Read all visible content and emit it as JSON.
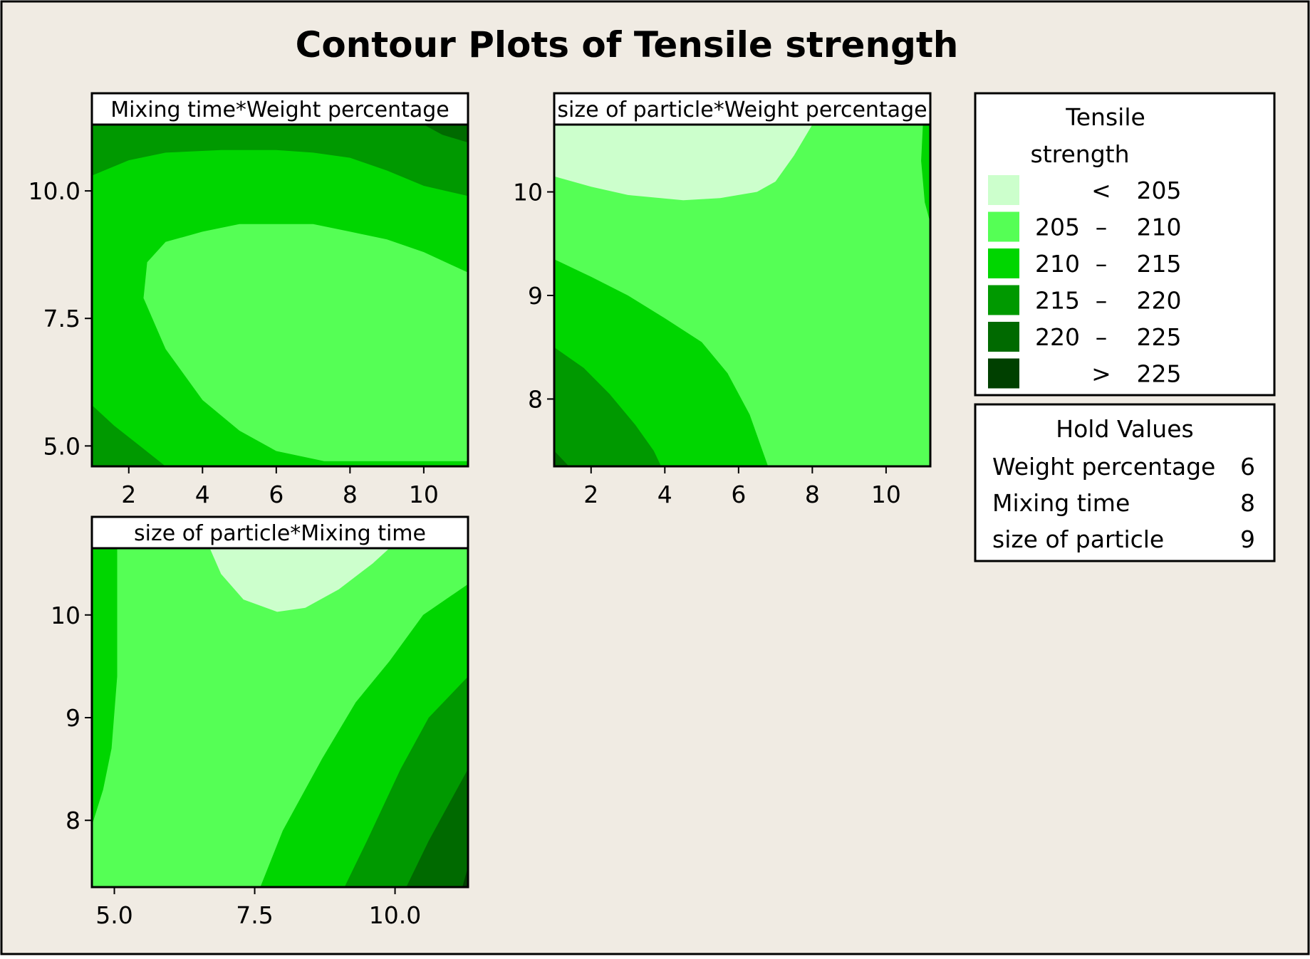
{
  "title": "Contour Plots of Tensile strength",
  "colors": {
    "background": "#f0ebe3",
    "frame": "#000000",
    "band_lt_205": "#ccffcc",
    "band_205_210": "#55ff55",
    "band_210_215": "#00d600",
    "band_215_220": "#009900",
    "band_220_225": "#006a00",
    "band_gt_225": "#004000"
  },
  "legend": {
    "title_line1": "Tensile",
    "title_line2": "strength",
    "entries": [
      {
        "low": "",
        "sep": "<",
        "high": "205",
        "color_key": "band_lt_205"
      },
      {
        "low": "205",
        "sep": "–",
        "high": "210",
        "color_key": "band_205_210"
      },
      {
        "low": "210",
        "sep": "–",
        "high": "215",
        "color_key": "band_210_215"
      },
      {
        "low": "215",
        "sep": "–",
        "high": "220",
        "color_key": "band_215_220"
      },
      {
        "low": "220",
        "sep": "–",
        "high": "225",
        "color_key": "band_220_225"
      },
      {
        "low": "",
        "sep": ">",
        "high": "225",
        "color_key": "band_gt_225"
      }
    ]
  },
  "hold_values": {
    "title": "Hold Values",
    "rows": [
      {
        "name": "Weight percentage",
        "value": "6"
      },
      {
        "name": "Mixing time",
        "value": "8"
      },
      {
        "name": "size of particle",
        "value": "9"
      }
    ]
  },
  "chart_data": [
    {
      "type": "heatmap",
      "subtitle": "Mixing time*Weight percentage",
      "xlim": [
        1,
        11.2
      ],
      "ylim": [
        4.6,
        11.3
      ],
      "x_ticks": [
        "2",
        "4",
        "6",
        "8",
        "10"
      ],
      "y_ticks": [
        "5.0",
        "7.5",
        "10.0"
      ],
      "z_levels": [
        205,
        210,
        215,
        220,
        225
      ],
      "regions": [
        {
          "band": "210 - 215",
          "color_key": "band_210_215",
          "polygon": [
            [
              1,
              4.6
            ],
            [
              11.2,
              4.6
            ],
            [
              11.2,
              11.3
            ],
            [
              1,
              11.3
            ]
          ]
        },
        {
          "band": "215 - 220",
          "color_key": "band_215_220",
          "polygon": [
            [
              1,
              10.3
            ],
            [
              2,
              10.6
            ],
            [
              3,
              10.75
            ],
            [
              4.5,
              10.8
            ],
            [
              6,
              10.8
            ],
            [
              7,
              10.75
            ],
            [
              8,
              10.65
            ],
            [
              9,
              10.4
            ],
            [
              10,
              10.1
            ],
            [
              11.2,
              9.9
            ],
            [
              11.2,
              11.3
            ],
            [
              1,
              11.3
            ]
          ]
        },
        {
          "band": "215 - 220",
          "color_key": "band_215_220",
          "polygon": [
            [
              1,
              5.8
            ],
            [
              1.6,
              5.4
            ],
            [
              2.3,
              5
            ],
            [
              3,
              4.6
            ],
            [
              1,
              4.6
            ]
          ]
        },
        {
          "band": "220 - 225",
          "color_key": "band_220_225",
          "polygon": [
            [
              10,
              11.3
            ],
            [
              10.5,
              11.1
            ],
            [
              11.2,
              10.95
            ],
            [
              11.2,
              11.3
            ]
          ]
        },
        {
          "band": "205 - 210",
          "color_key": "band_205_210",
          "polygon": [
            [
              7.3,
              4.7
            ],
            [
              6,
              4.9
            ],
            [
              5,
              5.3
            ],
            [
              4,
              5.9
            ],
            [
              3,
              6.9
            ],
            [
              2.4,
              7.9
            ],
            [
              2.5,
              8.6
            ],
            [
              3,
              9
            ],
            [
              4,
              9.2
            ],
            [
              5,
              9.35
            ],
            [
              7,
              9.35
            ],
            [
              8,
              9.2
            ],
            [
              9,
              9.05
            ],
            [
              10,
              8.8
            ],
            [
              11.2,
              8.4
            ],
            [
              11.2,
              4.7
            ]
          ]
        }
      ]
    },
    {
      "type": "heatmap",
      "subtitle": "size of particle*Weight percentage",
      "xlim": [
        1,
        11.2
      ],
      "ylim": [
        7.35,
        10.65
      ],
      "x_ticks": [
        "2",
        "4",
        "6",
        "8",
        "10"
      ],
      "y_ticks": [
        "8",
        "9",
        "10"
      ],
      "z_levels": [
        205,
        210,
        215,
        220,
        225
      ],
      "regions": [
        {
          "band": "205 - 210",
          "color_key": "band_205_210",
          "polygon": [
            [
              1,
              7.35
            ],
            [
              11.2,
              7.35
            ],
            [
              11.2,
              10.65
            ],
            [
              1,
              10.65
            ]
          ]
        },
        {
          "band": "< 205",
          "color_key": "band_lt_205",
          "polygon": [
            [
              1,
              10.15
            ],
            [
              2,
              10.05
            ],
            [
              3,
              9.97
            ],
            [
              4.5,
              9.92
            ],
            [
              5.5,
              9.94
            ],
            [
              6.5,
              10
            ],
            [
              7,
              10.1
            ],
            [
              7.5,
              10.35
            ],
            [
              8,
              10.65
            ],
            [
              1,
              10.65
            ]
          ]
        },
        {
          "band": "210 - 215",
          "color_key": "band_210_215",
          "polygon": [
            [
              1,
              9.35
            ],
            [
              2,
              9.18
            ],
            [
              3,
              9
            ],
            [
              4,
              8.78
            ],
            [
              5,
              8.55
            ],
            [
              5.7,
              8.25
            ],
            [
              6.3,
              7.85
            ],
            [
              6.8,
              7.35
            ],
            [
              1,
              7.35
            ]
          ]
        },
        {
          "band": "215 - 220",
          "color_key": "band_215_220",
          "polygon": [
            [
              1,
              8.5
            ],
            [
              1.8,
              8.3
            ],
            [
              2.5,
              8.05
            ],
            [
              3.2,
              7.75
            ],
            [
              3.7,
              7.5
            ],
            [
              3.9,
              7.35
            ],
            [
              1,
              7.35
            ]
          ]
        },
        {
          "band": "220 - 225",
          "color_key": "band_220_225",
          "polygon": [
            [
              1,
              7.5
            ],
            [
              1.4,
              7.35
            ],
            [
              1,
              7.35
            ]
          ]
        },
        {
          "band": "210 - 215",
          "color_key": "band_210_215",
          "polygon": [
            [
              11,
              10.65
            ],
            [
              11.2,
              10.65
            ],
            [
              11.2,
              9.7
            ],
            [
              11.05,
              9.9
            ],
            [
              10.95,
              10.3
            ]
          ]
        }
      ]
    },
    {
      "type": "heatmap",
      "subtitle": "size of particle*Mixing time",
      "xlim": [
        4.6,
        11.3
      ],
      "ylim": [
        7.35,
        10.65
      ],
      "x_ticks": [
        "5.0",
        "7.5",
        "10.0"
      ],
      "y_ticks": [
        "8",
        "9",
        "10"
      ],
      "z_levels": [
        205,
        210,
        215,
        220,
        225
      ],
      "regions": [
        {
          "band": "205 - 210",
          "color_key": "band_205_210",
          "polygon": [
            [
              4.6,
              7.35
            ],
            [
              11.3,
              7.35
            ],
            [
              11.3,
              10.65
            ],
            [
              4.6,
              10.65
            ]
          ]
        },
        {
          "band": "210 - 215",
          "color_key": "band_210_215",
          "polygon": [
            [
              4.6,
              7.35
            ],
            [
              4.6,
              10.65
            ],
            [
              5.05,
              10.65
            ],
            [
              5.05,
              9.4
            ],
            [
              4.95,
              8.7
            ],
            [
              4.8,
              8.3
            ],
            [
              4.6,
              7.95
            ]
          ]
        },
        {
          "band": "< 205",
          "color_key": "band_lt_205",
          "polygon": [
            [
              6.7,
              10.65
            ],
            [
              6.9,
              10.4
            ],
            [
              7.3,
              10.15
            ],
            [
              7.9,
              10.03
            ],
            [
              8.4,
              10.07
            ],
            [
              9,
              10.25
            ],
            [
              9.6,
              10.5
            ],
            [
              9.9,
              10.65
            ]
          ]
        },
        {
          "band": "210 - 215",
          "color_key": "band_210_215",
          "polygon": [
            [
              7.6,
              7.35
            ],
            [
              8,
              7.9
            ],
            [
              8.7,
              8.6
            ],
            [
              9.3,
              9.15
            ],
            [
              9.9,
              9.55
            ],
            [
              10.5,
              10
            ],
            [
              11.3,
              10.3
            ],
            [
              11.3,
              7.35
            ]
          ]
        },
        {
          "band": "215 - 220",
          "color_key": "band_215_220",
          "polygon": [
            [
              9.1,
              7.35
            ],
            [
              9.5,
              7.8
            ],
            [
              10.1,
              8.5
            ],
            [
              10.6,
              9
            ],
            [
              11.3,
              9.4
            ],
            [
              11.3,
              7.35
            ]
          ]
        },
        {
          "band": "220 - 225",
          "color_key": "band_220_225",
          "polygon": [
            [
              10.2,
              7.35
            ],
            [
              10.6,
              7.8
            ],
            [
              11.3,
              8.5
            ],
            [
              11.3,
              7.35
            ]
          ]
        },
        {
          "band": "> 225",
          "color_key": "band_gt_225",
          "polygon": [
            [
              11.2,
              7.35
            ],
            [
              11.3,
              7.55
            ],
            [
              11.3,
              7.35
            ]
          ]
        }
      ]
    }
  ]
}
